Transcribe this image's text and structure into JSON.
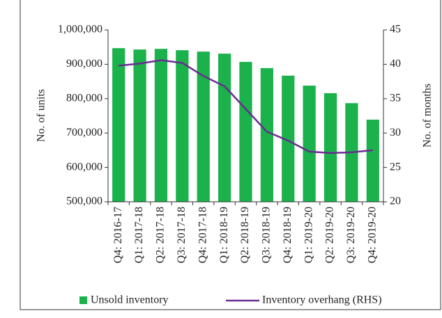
{
  "chart_data": {
    "type": "bar_line",
    "categories": [
      "Q4: 2016-17",
      "Q1: 2017-18",
      "Q2: 2017-18",
      "Q3: 2017-18",
      "Q4: 2017-18",
      "Q1: 2018-19",
      "Q2: 2018-19",
      "Q3: 2018-19",
      "Q4: 2018-19",
      "Q1: 2019-20",
      "Q2: 2019-20",
      "Q3: 2019-20",
      "Q4: 2019-20"
    ],
    "series": [
      {
        "name": "Unsold inventory",
        "color": "#1bb24b",
        "type": "bar",
        "values": [
          947000,
          943000,
          945000,
          941000,
          937000,
          931000,
          907000,
          889000,
          867000,
          838000,
          816000,
          787000,
          739000
        ]
      },
      {
        "name": "Inventory overhang (RHS)",
        "color": "#6a2c91",
        "type": "line",
        "axis": "y2",
        "values": [
          39.8,
          40.1,
          40.6,
          40.2,
          38.3,
          36.8,
          33.5,
          30.2,
          28.9,
          27.3,
          27.1,
          27.2,
          27.5
        ]
      }
    ],
    "ylabel": "No. of units",
    "y2label": "No. of months",
    "ylim": [
      500000,
      1000000
    ],
    "yticks": [
      {
        "value": 500000,
        "label": "500,000"
      },
      {
        "value": 600000,
        "label": "600,000"
      },
      {
        "value": 700000,
        "label": "700,000"
      },
      {
        "value": 800000,
        "label": "800,000"
      },
      {
        "value": 900000,
        "label": "900,000"
      },
      {
        "value": 1000000,
        "label": "1,000,000"
      }
    ],
    "y2lim": [
      20,
      45
    ],
    "y2ticks": [
      20,
      25,
      30,
      35,
      40,
      45
    ]
  }
}
